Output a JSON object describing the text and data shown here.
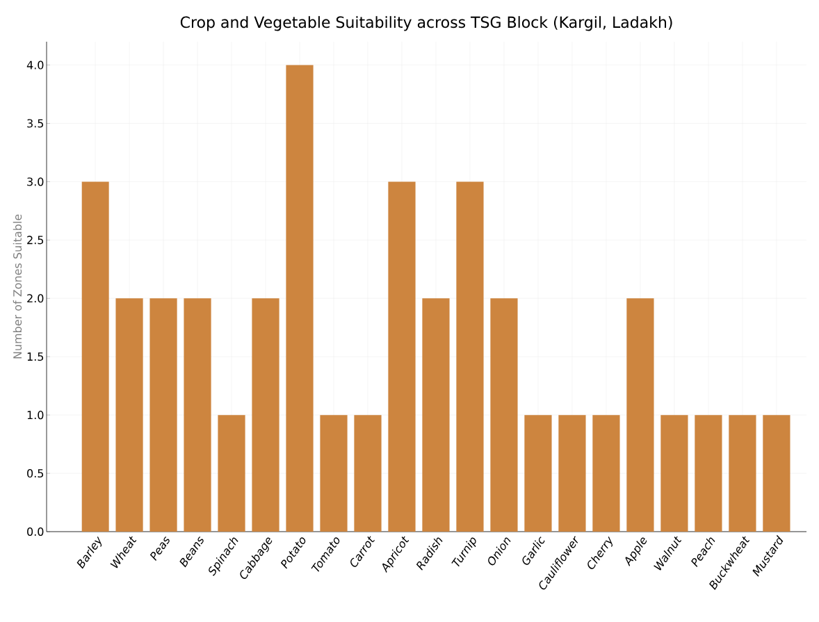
{
  "chart_data": {
    "type": "bar",
    "title": "Crop and Vegetable Suitability across TSG Block (Kargil, Ladakh)",
    "ylabel": "Number of Zones Suitable",
    "categories": [
      "Barley",
      "Wheat",
      "Peas",
      "Beans",
      "Spinach",
      "Cabbage",
      "Potato",
      "Tomato",
      "Carrot",
      "Apricot",
      "Radish",
      "Turnip",
      "Onion",
      "Garlic",
      "Cauliflower",
      "Cherry",
      "Apple",
      "Walnut",
      "Peach",
      "Buckwheat",
      "Mustard"
    ],
    "values": [
      3,
      2,
      2,
      2,
      1,
      2,
      4,
      1,
      1,
      3,
      2,
      3,
      2,
      1,
      1,
      1,
      2,
      1,
      1,
      1,
      1
    ],
    "color": "#cd853f",
    "ylim": [
      0,
      4.2
    ],
    "yticks": [
      {
        "value": 0,
        "label": "0.0"
      },
      {
        "value": 0.5,
        "label": "0.5"
      },
      {
        "value": 1,
        "label": "1.0"
      },
      {
        "value": 1.5,
        "label": "1.5"
      },
      {
        "value": 2,
        "label": "2.0"
      },
      {
        "value": 2.5,
        "label": "2.5"
      },
      {
        "value": 3,
        "label": "3.0"
      },
      {
        "value": 3.5,
        "label": "3.5"
      },
      {
        "value": 4,
        "label": "4.0"
      }
    ],
    "grid": true
  }
}
